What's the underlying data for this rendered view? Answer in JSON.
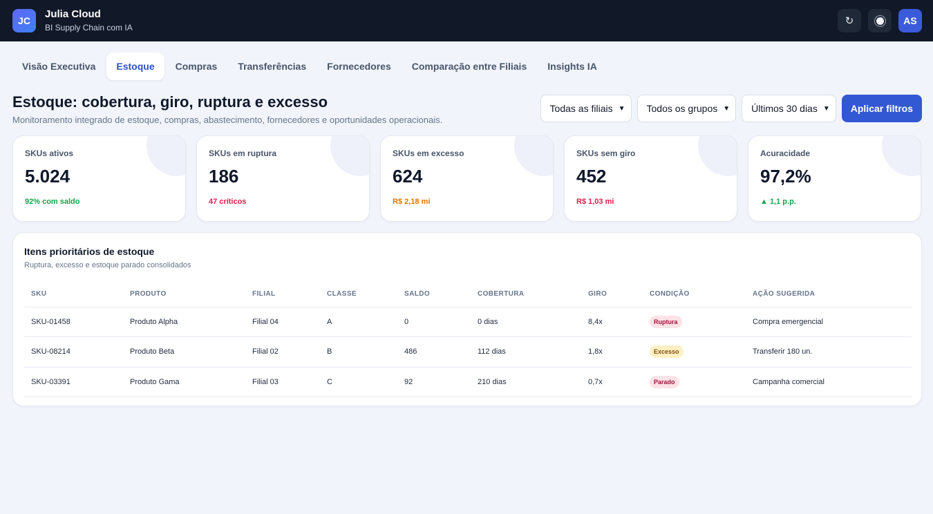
{
  "app": {
    "logo_initials": "JC",
    "title": "Julia Cloud",
    "subtitle": "BI Supply Chain com IA",
    "refresh_icon": "↻",
    "user_initials": "AS"
  },
  "tabs": [
    {
      "label": "Visão Executiva",
      "active": false
    },
    {
      "label": "Estoque",
      "active": true
    },
    {
      "label": "Compras",
      "active": false
    },
    {
      "label": "Transferências",
      "active": false
    },
    {
      "label": "Fornecedores",
      "active": false
    },
    {
      "label": "Comparação entre Filiais",
      "active": false
    },
    {
      "label": "Insights IA",
      "active": false
    }
  ],
  "page": {
    "title": "Estoque: cobertura, giro, ruptura e excesso",
    "subtitle": "Monitoramento integrado de estoque, compras, abastecimento, fornecedores e oportunidades operacionais."
  },
  "filters": {
    "branch": "Todas as filiais",
    "group": "Todos os grupos",
    "period": "Últimos 30 dias",
    "apply_label": "Aplicar filtros"
  },
  "kpis": [
    {
      "label": "SKUs ativos",
      "value": "5.024",
      "note": "92% com saldo",
      "note_color": "#16a34a"
    },
    {
      "label": "SKUs em ruptura",
      "value": "186",
      "note": "47 críticos",
      "note_color": "#e11d48"
    },
    {
      "label": "SKUs em excesso",
      "value": "624",
      "note": "R$ 2,18 mi",
      "note_color": "#d97706"
    },
    {
      "label": "SKUs sem giro",
      "value": "452",
      "note": "R$ 1,03 mi",
      "note_color": "#e11d48"
    },
    {
      "label": "Acuracidade",
      "value": "97,2%",
      "note": "▲ 1,1 p.p.",
      "note_color": "#16a34a"
    }
  ],
  "table": {
    "title": "Itens prioritários de estoque",
    "subtitle": "Ruptura, excesso e estoque parado consolidados",
    "columns": [
      "SKU",
      "PRODUTO",
      "FILIAL",
      "CLASSE",
      "SALDO",
      "COBERTURA",
      "GIRO",
      "CONDIÇÃO",
      "AÇÃO SUGERIDA"
    ],
    "rows": [
      {
        "sku": "SKU-01458",
        "produto": "Produto Alpha",
        "filial": "Filial 04",
        "classe": "A",
        "saldo": "0",
        "cobertura": "0 dias",
        "giro": "8,4x",
        "condicao": "Ruptura",
        "badge_bg": "#fde2e8",
        "badge_fg": "#9f1239",
        "acao": "Compra emergencial"
      },
      {
        "sku": "SKU-08214",
        "produto": "Produto Beta",
        "filial": "Filial 02",
        "classe": "B",
        "saldo": "486",
        "cobertura": "112 dias",
        "giro": "1,8x",
        "condicao": "Excesso",
        "badge_bg": "#fdf0c4",
        "badge_fg": "#854d0e",
        "acao": "Transferir 180 un."
      },
      {
        "sku": "SKU-03391",
        "produto": "Produto Gama",
        "filial": "Filial 03",
        "classe": "C",
        "saldo": "92",
        "cobertura": "210 dias",
        "giro": "0,7x",
        "condicao": "Parado",
        "badge_bg": "#fde2e8",
        "badge_fg": "#9f1239",
        "acao": "Campanha comercial"
      }
    ]
  }
}
